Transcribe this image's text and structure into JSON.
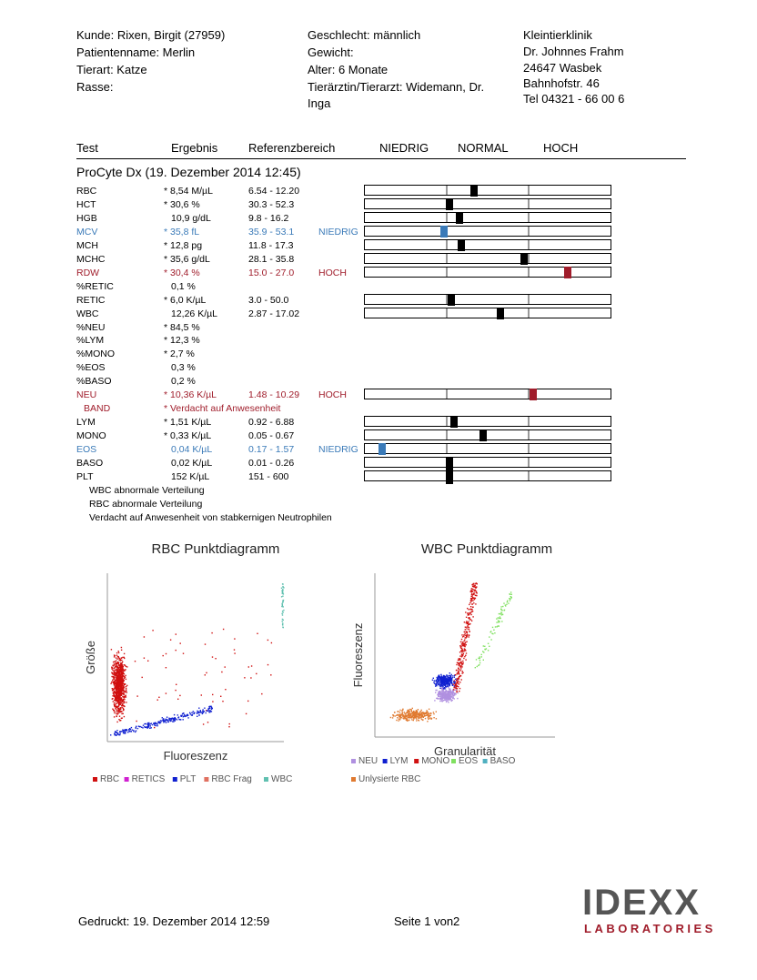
{
  "header": {
    "patient": [
      "Kunde: Rixen, Birgit (27959)",
      "Patientenname: Merlin",
      "Tierart: Katze",
      "Rasse:"
    ],
    "details": [
      "Geschlecht: männlich",
      "Gewicht:",
      "Alter: 6 Monate",
      "Tierärztin/Tierarzt: Widemann, Dr.",
      "Inga"
    ],
    "clinic": [
      "Kleintierklinik",
      "Dr. Johnnes Frahm",
      "24647 Wasbek",
      "Bahnhofstr. 46",
      "Tel 04321 - 66 00 6"
    ]
  },
  "table": {
    "columns": [
      "Test",
      "Ergebnis",
      "Referenzbereich",
      "NIEDRIG",
      "NORMAL",
      "HOCH"
    ],
    "section": "ProCyte Dx (19. Dezember 2014 12:45)",
    "rows": [
      {
        "test": "RBC",
        "result": "* 8,54 M/µL",
        "range": "6.54 - 12.20"
      },
      {
        "test": "HCT",
        "result": "* 30,6 %",
        "range": "30.3 - 52.3"
      },
      {
        "test": "HGB",
        "result": "10,9 g/dL",
        "range": "9.8 - 16.2"
      },
      {
        "test": "MCV",
        "result": "* 35,8 fL",
        "range": "35.9 - 53.1",
        "flag": "NIEDRIG",
        "color": "#3a7ab8"
      },
      {
        "test": "MCH",
        "result": "* 12,8 pg",
        "range": "11.8 - 17.3"
      },
      {
        "test": "MCHC",
        "result": "* 35,6 g/dL",
        "range": "28.1 - 35.8"
      },
      {
        "test": "RDW",
        "result": "* 30,4 %",
        "range": "15.0 - 27.0",
        "flag": "HOCH",
        "color": "#a01d2b"
      },
      {
        "test": "%RETIC",
        "result": "0,1 %"
      },
      {
        "test": "RETIC",
        "result": "* 6,0 K/µL",
        "range": "3.0 - 50.0"
      },
      {
        "test": "WBC",
        "result": "12,26 K/µL",
        "range": "2.87 - 17.02"
      },
      {
        "test": "%NEU",
        "result": "* 84,5 %"
      },
      {
        "test": "%LYM",
        "result": "* 12,3 %"
      },
      {
        "test": "%MONO",
        "result": "* 2,7 %"
      },
      {
        "test": "%EOS",
        "result": "0,3 %"
      },
      {
        "test": "%BASO",
        "result": "0,2 %"
      },
      {
        "test": "NEU",
        "result": "* 10,36 K/µL",
        "range": "1.48 - 10.29",
        "flag": "HOCH",
        "color": "#a01d2b"
      },
      {
        "test": "BAND",
        "result": "* Verdacht auf Anwesenheit",
        "color": "#a01d2b"
      },
      {
        "test": "LYM",
        "result": "* 1,51 K/µL",
        "range": "0.92 - 6.88"
      },
      {
        "test": "MONO",
        "result": "* 0,33 K/µL",
        "range": "0.05 - 0.67"
      },
      {
        "test": "EOS",
        "result": "0,04 K/µL",
        "range": "0.17 - 1.57",
        "flag": "NIEDRIG",
        "color": "#3a7ab8"
      },
      {
        "test": "BASO",
        "result": "0,02 K/µL",
        "range": "0.01 - 0.26"
      },
      {
        "test": "PLT",
        "result": "152 K/µL",
        "range": "151 - 600"
      }
    ]
  },
  "notes": [
    "WBC abnormale Verteilung",
    "RBC abnormale Verteilung",
    "Verdacht auf Anwesenheit von stabkernigen Neutrophilen"
  ],
  "plots": [
    {
      "title": "RBC Punktdiagramm",
      "ylabel": "Größe",
      "xlabel": "Fluoreszenz",
      "legend": [
        {
          "name": "RBC",
          "color": "#d01010"
        },
        {
          "name": "RETICS",
          "color": "#d020d0"
        },
        {
          "name": "PLT",
          "color": "#1020d0"
        },
        {
          "name": "RBC Frag",
          "color": "#e07060"
        },
        {
          "name": "WBC",
          "color": "#60c0b0"
        }
      ]
    },
    {
      "title": "WBC Punktdiagramm",
      "ylabel": "Fluoreszenz",
      "xlabel": "Granularität",
      "legend": [
        {
          "name": "NEU",
          "color": "#b090e0"
        },
        {
          "name": "LYM",
          "color": "#1020d0"
        },
        {
          "name": "MONO",
          "color": "#d01010"
        },
        {
          "name": "EOS",
          "color": "#80e060"
        },
        {
          "name": "BASO",
          "color": "#50b0c0"
        },
        {
          "name": "Unlysierte RBC",
          "color": "#e07a30"
        }
      ]
    }
  ],
  "footer": {
    "printed": "Gedruckt: 19. Dezember 2014 12:59",
    "page": "Seite 1 von2",
    "logo": "IDEXX",
    "logo_sub": "LABORATORIES"
  }
}
